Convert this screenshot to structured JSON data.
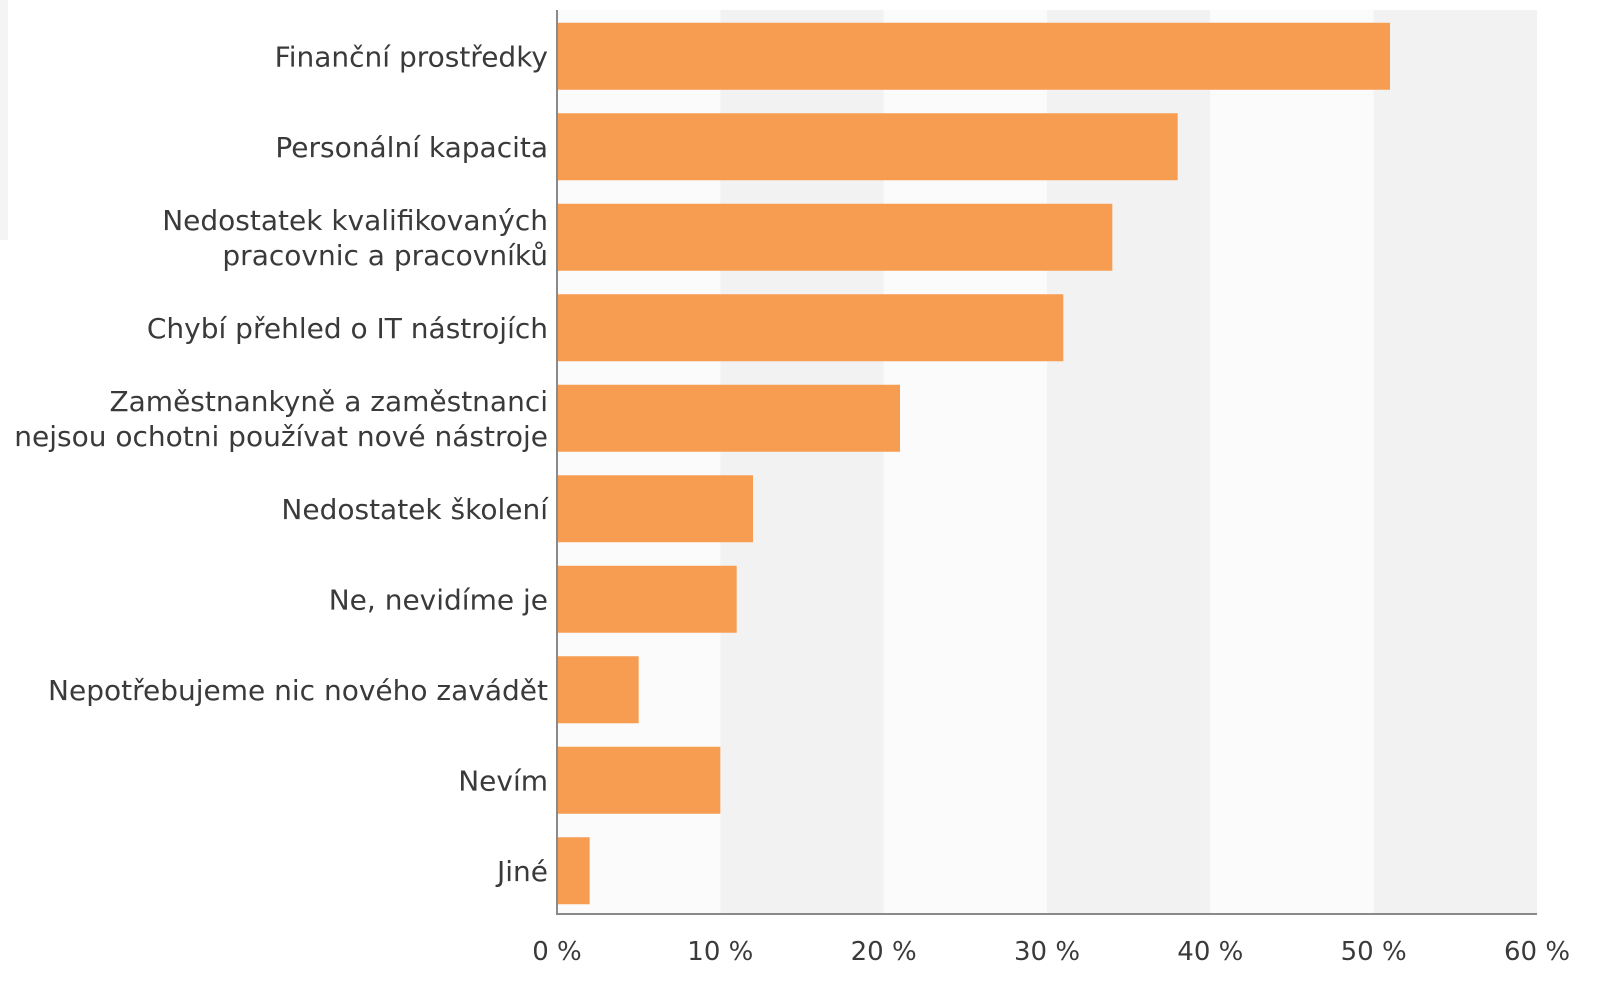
{
  "chart_data": {
    "type": "bar",
    "orientation": "horizontal",
    "categories": [
      [
        "Finanční prostředky"
      ],
      [
        "Personální kapacita"
      ],
      [
        "Nedostatek kvalifikovaných",
        "pracovnic a pracovníků"
      ],
      [
        "Chybí přehled o IT nástrojích"
      ],
      [
        "Zaměstnankyně a zaměstnanci",
        "nejsou ochotni používat nové nástroje"
      ],
      [
        "Nedostatek školení"
      ],
      [
        "Ne, nevidíme je"
      ],
      [
        "Nepotřebujeme nic nového zavádět"
      ],
      [
        "Nevím"
      ],
      [
        "Jiné"
      ]
    ],
    "values": [
      51,
      38,
      34,
      31,
      21,
      12,
      11,
      5,
      10,
      2
    ],
    "xlim": [
      0,
      60
    ],
    "ticks": [
      "0 %",
      "10 %",
      "20 %",
      "30 %",
      "40 %",
      "50 %",
      "60 %"
    ],
    "bar_color": "#f79d52",
    "band_colors": [
      "#fbfbfb",
      "#f2f2f2"
    ],
    "axis_color": "#8a8a8a",
    "grid": "alternating vertical bands",
    "legend": "none"
  }
}
